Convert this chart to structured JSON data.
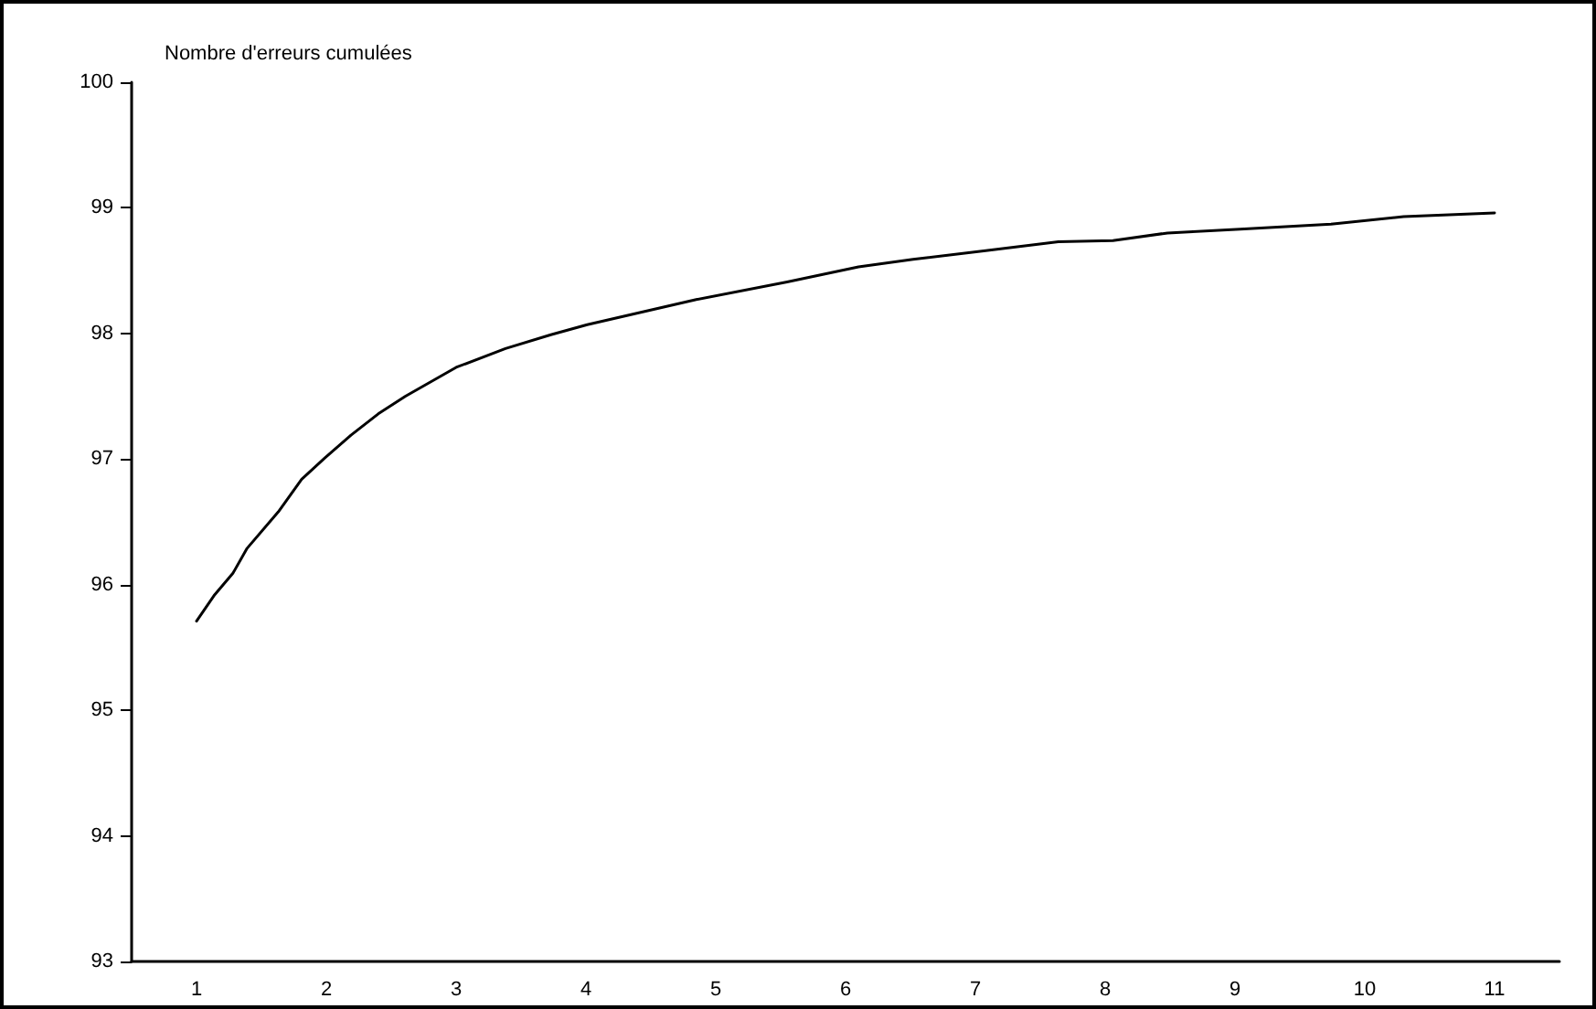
{
  "chart_data": {
    "type": "line",
    "ylabel": "Nombre d'erreurs cumulées",
    "x": [
      1,
      1.14,
      1.28,
      1.39,
      1.63,
      1.81,
      1.99,
      2.19,
      2.4,
      2.61,
      3,
      3.38,
      3.73,
      4.01,
      4.43,
      4.85,
      5.55,
      6.1,
      6.52,
      7.08,
      7.64,
      8.06,
      8.48,
      9.04,
      9.74,
      10.3,
      11
    ],
    "series": [
      {
        "color": "#000000",
        "values": [
          95.71,
          95.92,
          96.09,
          96.29,
          96.58,
          96.84,
          97.01,
          97.19,
          97.36,
          97.5,
          97.73,
          97.88,
          97.99,
          98.07,
          98.17,
          98.27,
          98.41,
          98.53,
          98.59,
          98.66,
          98.73,
          98.74,
          98.8,
          98.83,
          98.87,
          98.93,
          98.96
        ]
      }
    ],
    "xlim": [
      0.5,
      11.5
    ],
    "xticks": [
      1,
      2,
      3,
      4,
      5,
      6,
      7,
      8,
      9,
      10,
      11
    ],
    "ylim": [
      93,
      100
    ],
    "yticks": [
      93,
      94,
      95,
      96,
      97,
      98,
      99,
      100
    ],
    "grid": false,
    "marker": "none",
    "line_style": "solid"
  }
}
